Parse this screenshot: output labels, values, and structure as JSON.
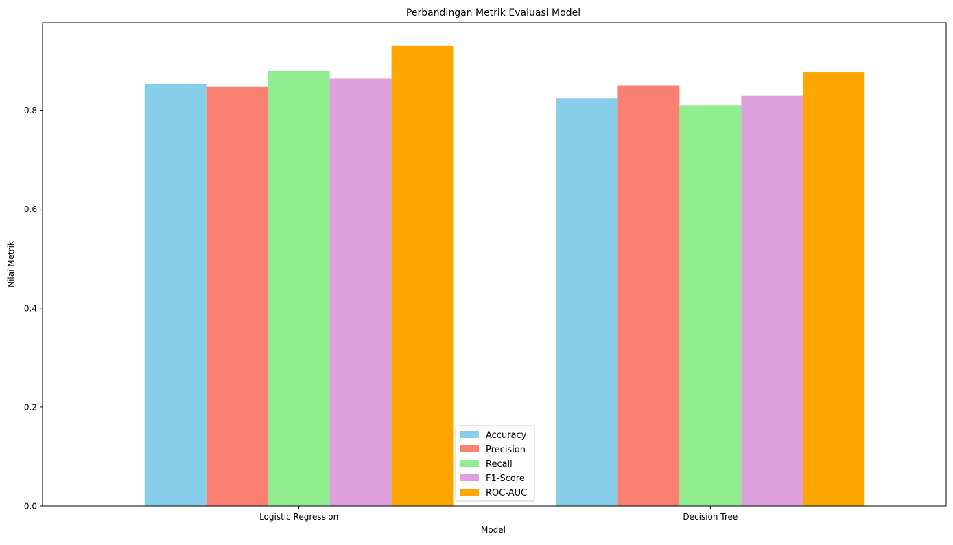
{
  "chart_data": {
    "type": "bar",
    "title": "Perbandingan Metrik Evaluasi Model",
    "xlabel": "Model",
    "ylabel": "Nilai Metrik",
    "categories": [
      "Logistic Regression",
      "Decision Tree"
    ],
    "series": [
      {
        "name": "Accuracy",
        "color": "#87CEEB",
        "values": [
          0.853,
          0.824
        ]
      },
      {
        "name": "Precision",
        "color": "#FA8072",
        "values": [
          0.847,
          0.85
        ]
      },
      {
        "name": "Recall",
        "color": "#90EE90",
        "values": [
          0.88,
          0.81
        ]
      },
      {
        "name": "F1-Score",
        "color": "#DDA0DD",
        "values": [
          0.864,
          0.829
        ]
      },
      {
        "name": "ROC-AUC",
        "color": "#FFA500",
        "values": [
          0.93,
          0.877
        ]
      }
    ],
    "ylim": [
      0,
      0.977
    ],
    "yticks": [
      "0.0",
      "0.2",
      "0.4",
      "0.6",
      "0.8"
    ],
    "grid": false,
    "legend_position": "lower center"
  }
}
